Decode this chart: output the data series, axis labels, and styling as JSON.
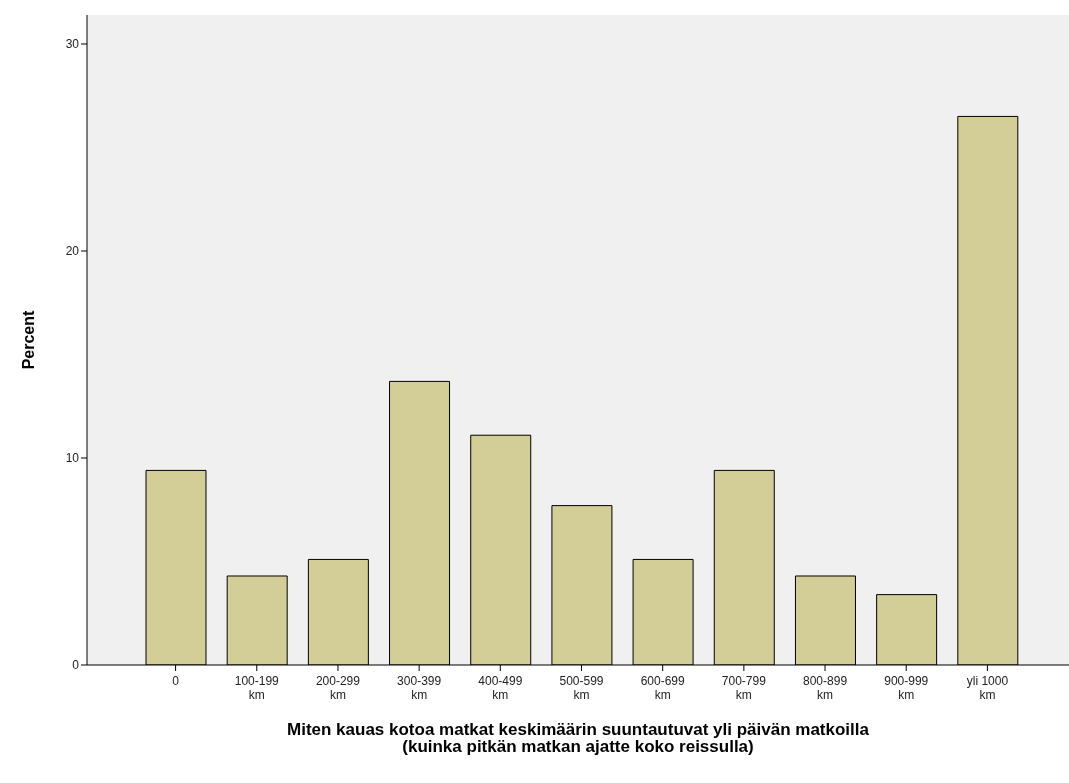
{
  "chart_data": {
    "type": "bar",
    "xlabel": "Miten kauas kotoa matkat keskimäärin suuntautuvat yli päivän matkoilla\n(kuinka pitkän matkan ajatte koko reissulla)",
    "ylabel": "Percent",
    "categories": [
      "0",
      "100-199\nkm",
      "200-299\nkm",
      "300-399\nkm",
      "400-499\nkm",
      "500-599\nkm",
      "600-699\nkm",
      "700-799\nkm",
      "800-899\nkm",
      "900-999\nkm",
      "yli 1000\nkm"
    ],
    "values": [
      9.4,
      4.3,
      5.1,
      13.7,
      11.1,
      7.7,
      5.1,
      9.4,
      4.3,
      3.4,
      26.5
    ],
    "color": "#d3cd98",
    "ylim": [
      0,
      31.4
    ],
    "yticks": [
      0,
      10,
      20,
      30
    ],
    "grid": false
  }
}
